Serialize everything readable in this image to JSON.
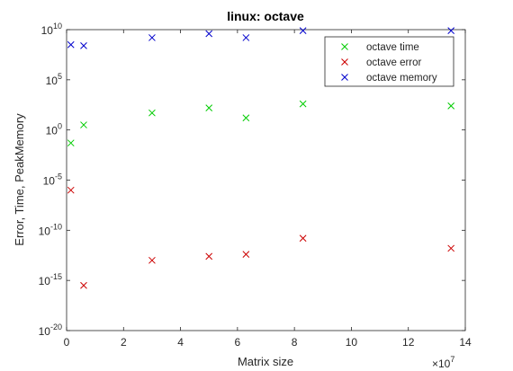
{
  "chart_data": {
    "type": "scatter",
    "title": "linux: octave",
    "xlabel": "Matrix size",
    "ylabel": "Error, Time, PeakMemory",
    "x_exponent_label": "×10",
    "x_exponent_power": "7",
    "xlim": [
      0,
      14
    ],
    "ylim_log10": [
      -20,
      10
    ],
    "y_scale": "log",
    "x_ticks": [
      0,
      2,
      4,
      6,
      8,
      10,
      12,
      14
    ],
    "x_tick_labels": [
      "0",
      "2",
      "4",
      "6",
      "8",
      "10",
      "12",
      "14"
    ],
    "y_ticks_log10": [
      -20,
      -15,
      -10,
      -5,
      0,
      5,
      10
    ],
    "y_tick_base": "10",
    "y_tick_exponents": [
      "-20",
      "-15",
      "-10",
      "-5",
      "0",
      "5",
      "10"
    ],
    "grid": false,
    "legend_position": "top-right",
    "marker": "x",
    "series": [
      {
        "name": "octave time",
        "color": "#00cc00",
        "x": [
          0.15,
          0.6,
          3.0,
          5.0,
          6.3,
          8.3,
          13.5
        ],
        "log10_y": [
          -1.3,
          0.5,
          1.7,
          2.2,
          1.2,
          2.6,
          2.4
        ]
      },
      {
        "name": "octave error",
        "color": "#cc0000",
        "x": [
          0.15,
          0.6,
          3.0,
          5.0,
          6.3,
          8.3,
          13.5
        ],
        "log10_y": [
          -6.0,
          -15.5,
          -13.0,
          -12.6,
          -12.4,
          -10.8,
          -11.8
        ]
      },
      {
        "name": "octave memory",
        "color": "#0000cc",
        "x": [
          0.15,
          0.6,
          3.0,
          5.0,
          6.3,
          8.3,
          13.5
        ],
        "log10_y": [
          8.5,
          8.4,
          9.2,
          9.6,
          9.2,
          9.9,
          9.9
        ]
      }
    ]
  }
}
